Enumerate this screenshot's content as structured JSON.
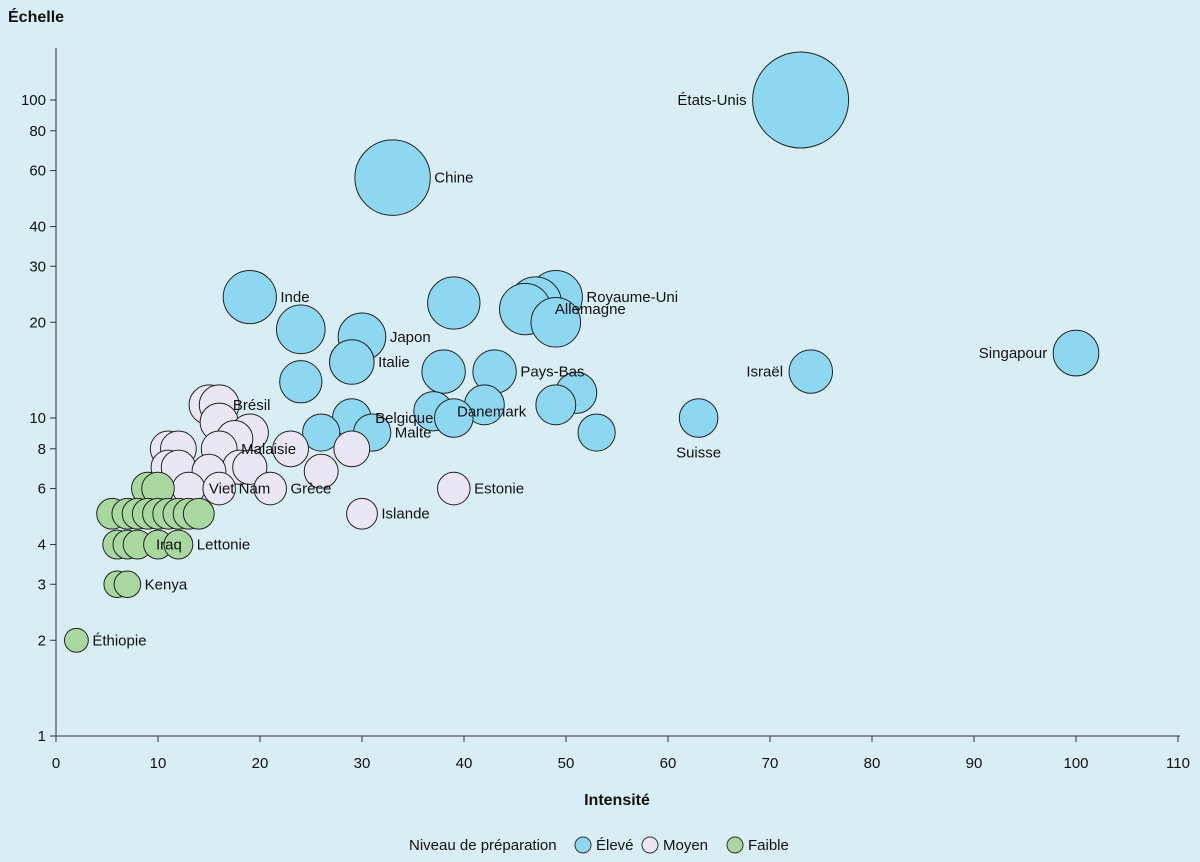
{
  "chart_data": {
    "type": "scatter",
    "xlabel": "Intensité",
    "ylabel": "Échelle",
    "x_scale": "linear",
    "y_scale": "log",
    "xlim": [
      0,
      110
    ],
    "ylim": [
      1,
      100
    ],
    "x_ticks": [
      0,
      10,
      20,
      30,
      40,
      50,
      60,
      70,
      80,
      90,
      100,
      110
    ],
    "y_ticks": [
      1,
      2,
      3,
      4,
      6,
      8,
      10,
      20,
      30,
      40,
      60,
      80,
      100
    ],
    "grid": false,
    "legend": {
      "title": "Niveau de préparation",
      "position": "bottom-center",
      "items": [
        {
          "key": "high",
          "label": "Élevé",
          "color": "#8dd7f0"
        },
        {
          "key": "mid",
          "label": "Moyen",
          "color": "#ebe6f3"
        },
        {
          "key": "low",
          "label": "Faible",
          "color": "#a8d7a0"
        }
      ]
    },
    "series": [
      {
        "key": "high",
        "name": "Élevé",
        "color": "#8dd7f0",
        "points": [
          {
            "x": 73,
            "y": 100,
            "size": 100,
            "label": "États-Unis"
          },
          {
            "x": 33,
            "y": 57,
            "size": 57,
            "label": "Chine"
          },
          {
            "x": 100,
            "y": 16,
            "size": 16,
            "label": "Singapour"
          },
          {
            "x": 74,
            "y": 14,
            "size": 14,
            "label": "Israël"
          },
          {
            "x": 63,
            "y": 10,
            "size": 10,
            "label": "Suisse"
          },
          {
            "x": 49,
            "y": 24,
            "size": 24,
            "label": "Royaume-Uni"
          },
          {
            "x": 49,
            "y": 20,
            "size": 20
          },
          {
            "x": 47,
            "y": 23,
            "size": 23
          },
          {
            "x": 46,
            "y": 22,
            "size": 22,
            "label": "Allemagne"
          },
          {
            "x": 43,
            "y": 14,
            "size": 14,
            "label": "Pays-Bas"
          },
          {
            "x": 39,
            "y": 23,
            "size": 23
          },
          {
            "x": 19,
            "y": 24,
            "size": 24,
            "label": "Inde"
          },
          {
            "x": 24,
            "y": 19,
            "size": 19
          },
          {
            "x": 30,
            "y": 18,
            "size": 18,
            "label": "Japon"
          },
          {
            "x": 29,
            "y": 15,
            "size": 15,
            "label": "Italie"
          },
          {
            "x": 24,
            "y": 13,
            "size": 13
          },
          {
            "x": 38,
            "y": 14,
            "size": 14
          },
          {
            "x": 51,
            "y": 12,
            "size": 12
          },
          {
            "x": 49,
            "y": 11,
            "size": 11
          },
          {
            "x": 53,
            "y": 9,
            "size": 9
          },
          {
            "x": 42,
            "y": 11,
            "size": 11
          },
          {
            "x": 37,
            "y": 10.5,
            "size": 10.5,
            "label": "Danemark"
          },
          {
            "x": 39,
            "y": 10,
            "size": 10
          },
          {
            "x": 29,
            "y": 10,
            "size": 10,
            "label": "Belgique"
          },
          {
            "x": 31,
            "y": 9,
            "size": 9,
            "label": "Malte"
          },
          {
            "x": 26,
            "y": 9,
            "size": 9
          }
        ]
      },
      {
        "key": "mid",
        "name": "Moyen",
        "color": "#ebe6f3",
        "points": [
          {
            "x": 39,
            "y": 6,
            "size": 6,
            "label": "Estonie"
          },
          {
            "x": 30,
            "y": 5,
            "size": 5,
            "label": "Islande"
          },
          {
            "x": 21,
            "y": 6,
            "size": 6,
            "label": "Grèce"
          },
          {
            "x": 15,
            "y": 11,
            "size": 11,
            "label": "Brésil"
          },
          {
            "x": 16,
            "y": 11,
            "size": 11
          },
          {
            "x": 16,
            "y": 9.7,
            "size": 9.7
          },
          {
            "x": 19,
            "y": 9,
            "size": 9
          },
          {
            "x": 17.5,
            "y": 8.6,
            "size": 8.6
          },
          {
            "x": 16,
            "y": 8,
            "size": 8,
            "label": "Malaisie"
          },
          {
            "x": 11,
            "y": 8,
            "size": 8
          },
          {
            "x": 12,
            "y": 8,
            "size": 8
          },
          {
            "x": 23,
            "y": 8,
            "size": 8
          },
          {
            "x": 29,
            "y": 8,
            "size": 8
          },
          {
            "x": 11,
            "y": 7,
            "size": 7
          },
          {
            "x": 12,
            "y": 7,
            "size": 7
          },
          {
            "x": 15,
            "y": 6.8,
            "size": 6.8
          },
          {
            "x": 18,
            "y": 7,
            "size": 7
          },
          {
            "x": 19,
            "y": 7,
            "size": 7
          },
          {
            "x": 26,
            "y": 6.8,
            "size": 6.8
          },
          {
            "x": 13,
            "y": 6,
            "size": 6,
            "label": "Viet Nam"
          },
          {
            "x": 16,
            "y": 6,
            "size": 6
          }
        ]
      },
      {
        "key": "low",
        "name": "Faible",
        "color": "#a8d7a0",
        "points": [
          {
            "x": 2,
            "y": 2,
            "size": 2,
            "label": "Éthiopie"
          },
          {
            "x": 6,
            "y": 3,
            "size": 3
          },
          {
            "x": 7,
            "y": 3,
            "size": 3,
            "label": "Kenya"
          },
          {
            "x": 6,
            "y": 4,
            "size": 4
          },
          {
            "x": 7,
            "y": 4,
            "size": 4
          },
          {
            "x": 8,
            "y": 4,
            "size": 4,
            "label": "Iraq"
          },
          {
            "x": 10,
            "y": 4,
            "size": 4
          },
          {
            "x": 12,
            "y": 4,
            "size": 4,
            "label": "Lettonie"
          },
          {
            "x": 5.5,
            "y": 5,
            "size": 5
          },
          {
            "x": 7,
            "y": 5,
            "size": 5
          },
          {
            "x": 8,
            "y": 5,
            "size": 5
          },
          {
            "x": 9,
            "y": 5,
            "size": 5
          },
          {
            "x": 10,
            "y": 5,
            "size": 5
          },
          {
            "x": 11,
            "y": 5,
            "size": 5
          },
          {
            "x": 12,
            "y": 5,
            "size": 5
          },
          {
            "x": 13,
            "y": 5,
            "size": 5
          },
          {
            "x": 14,
            "y": 5,
            "size": 5
          },
          {
            "x": 9,
            "y": 6,
            "size": 6
          },
          {
            "x": 10,
            "y": 6,
            "size": 6
          }
        ]
      }
    ]
  }
}
